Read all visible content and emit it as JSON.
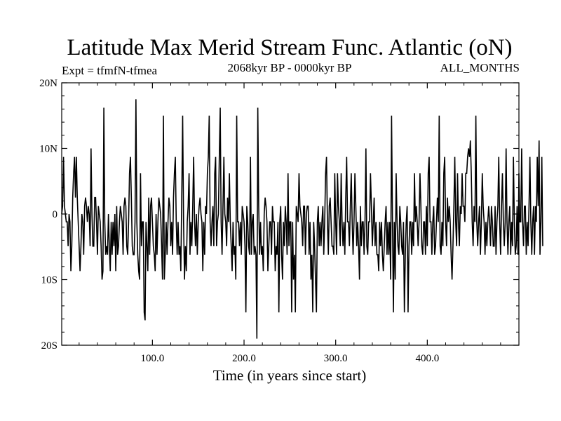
{
  "chart_data": {
    "type": "line",
    "title": "Latitude Max Merid Stream Func. Atlantic (oN)",
    "subtitle_left": "Expt = tfmfN-tfmea",
    "subtitle_center": "2068kyr BP - 0000kyr BP",
    "subtitle_right": "ALL_MONTHS",
    "xlabel": "Time (in years since start)",
    "ylabel": "",
    "xlim": [
      1,
      500
    ],
    "ylim": [
      -20,
      20
    ],
    "x_ticks": [
      100,
      200,
      300,
      400
    ],
    "x_tick_labels": [
      "100.0",
      "200.0",
      "300.0",
      "400.0"
    ],
    "y_ticks": [
      20,
      10,
      0,
      -10,
      -20
    ],
    "y_tick_labels": [
      "20N",
      "10N",
      "0",
      "10S",
      "20S"
    ],
    "grid": false,
    "series": [
      {
        "name": "Latitude Max Merid Stream Func.",
        "color": "#000000",
        "x_start": 1,
        "x_step": 1,
        "values": [
          0,
          1.2,
          8.7,
          1.2,
          0,
          -1.2,
          -1.2,
          -4.9,
          0,
          -1.2,
          -8.7,
          -4.9,
          2.5,
          6.2,
          8.7,
          2.5,
          8.7,
          2.5,
          -1.2,
          -4.9,
          -8.7,
          -4.9,
          0,
          -1.2,
          -6.2,
          1.2,
          2.5,
          1.2,
          -1.2,
          1.2,
          0,
          -4.9,
          10,
          0,
          -4.9,
          -4.9,
          2.5,
          2.5,
          -1.2,
          -6.2,
          1.2,
          0,
          -1.2,
          -4.9,
          -10,
          -8.7,
          16.2,
          -1.2,
          -6.2,
          -4.9,
          -6.2,
          0,
          -4.9,
          -8.7,
          -1.2,
          -6.2,
          -1.2,
          -4.9,
          0,
          -8.7,
          1.2,
          -6.2,
          -4.9,
          -1.2,
          1.2,
          0,
          -1.2,
          -6.2,
          1.2,
          2.5,
          1.2,
          -4.9,
          -6.2,
          -1.2,
          6.2,
          8.7,
          2.5,
          -4.9,
          -6.2,
          -6.2,
          -1.2,
          17.5,
          -1.2,
          -6.2,
          -8.7,
          -10,
          6.2,
          -4.9,
          -1.2,
          -1.2,
          -15,
          -16.2,
          -1.2,
          -4.9,
          -8.7,
          2.5,
          -6.2,
          1.2,
          2.5,
          -1.2,
          -4.9,
          -6.2,
          -8.7,
          0,
          -6.2,
          -1.2,
          2.5,
          1.2,
          0,
          -4.9,
          -10,
          15,
          -10,
          -6.2,
          -1.2,
          -6.2,
          -1.2,
          2.5,
          1.2,
          -4.9,
          -1.2,
          -6.2,
          2.5,
          6.2,
          8.7,
          -1.2,
          -6.2,
          -1.2,
          -6.2,
          -4.9,
          -8.7,
          2.5,
          15,
          -1.2,
          -10,
          -4.9,
          -8.7,
          -1.2,
          1.2,
          6.2,
          -6.2,
          -1.2,
          -4.9,
          1.2,
          8.7,
          -1.2,
          -4.9,
          0,
          -6.2,
          -1.2,
          1.2,
          2.5,
          0,
          -1.2,
          -8.7,
          -1.2,
          -6.2,
          1.2,
          0,
          6.2,
          8.7,
          15,
          -1.2,
          -4.9,
          -1.2,
          1.2,
          -4.9,
          6.2,
          8.7,
          -4.9,
          -1.2,
          0,
          8.7,
          16.2,
          -1.2,
          -6.2,
          1.2,
          8.7,
          0,
          -1.2,
          -4.9,
          2.5,
          -1.2,
          6.2,
          -1.2,
          -4.9,
          -8.7,
          -1.2,
          -6.2,
          -4.9,
          -10,
          15,
          -1.2,
          -1.2,
          -4.9,
          -1.2,
          -6.2,
          1.2,
          0,
          -1.2,
          -4.9,
          -15,
          1.2,
          -1.2,
          -4.9,
          -6.2,
          8.7,
          -6.2,
          -1.2,
          0,
          -6.2,
          -4.9,
          -6.2,
          -19,
          16.2,
          1.2,
          -6.2,
          -1.2,
          -6.2,
          -4.9,
          -8.7,
          0,
          2.5,
          1.2,
          -1.2,
          -8.7,
          -4.9,
          -1.2,
          -1.2,
          -6.2,
          1.2,
          -1.2,
          -1.2,
          -8.7,
          -4.9,
          -6.2,
          -1.2,
          -15,
          -1.2,
          1.2,
          -6.2,
          -10,
          -1.2,
          -4.9,
          1.2,
          -1.2,
          -6.2,
          6.2,
          -4.9,
          -1.2,
          -1.2,
          -15,
          -1.2,
          -10,
          -6.2,
          -15,
          1.2,
          0,
          -1.2,
          6.2,
          1.2,
          0,
          -1.2,
          -4.9,
          1.2,
          1.2,
          -6.2,
          0,
          1.2,
          1.2,
          -6.2,
          -1.2,
          -10,
          -6.2,
          -15,
          -1.2,
          -4.9,
          -10,
          -15,
          -1.2,
          1.2,
          -4.9,
          -1.2,
          -4.9,
          -1.2,
          1.2,
          -6.2,
          -1.2,
          6.2,
          8.7,
          -1.2,
          -6.2,
          1.2,
          2.5,
          -1.2,
          -4.9,
          -4.9,
          -6.2,
          6.2,
          -1.2,
          -6.2,
          6.2,
          1.2,
          -1.2,
          -4.9,
          6.2,
          -1.2,
          -4.9,
          -1.2,
          -6.2,
          2.5,
          8.7,
          -1.2,
          -1.2,
          -4.9,
          1.2,
          6.2,
          -1.2,
          -6.2,
          -1.2,
          6.2,
          1.2,
          -4.9,
          -1.2,
          -4.9,
          -10,
          1.2,
          -4.9,
          -1.2,
          -1.2,
          -6.2,
          -1.2,
          10,
          -4.9,
          -6.2,
          -1.2,
          -1.2,
          6.2,
          1.2,
          -4.9,
          -1.2,
          2.5,
          -4.9,
          -1.2,
          -6.2,
          -6.2,
          -8.7,
          -1.2,
          -4.9,
          -1.2,
          -6.2,
          -8.7,
          -4.9,
          -1.2,
          1.2,
          -6.2,
          -1.2,
          -6.2,
          -1.2,
          -10,
          15,
          -1.2,
          -15,
          -1.2,
          -10,
          6.2,
          -1.2,
          -4.9,
          -6.2,
          1.2,
          -1.2,
          -4.9,
          -6.2,
          -1.2,
          -15,
          -6.2,
          -1.2,
          1.2,
          -15,
          -4.9,
          -1.2,
          -1.2,
          -6.2,
          -1.2,
          -4.9,
          6.2,
          -1.2,
          1.2,
          -1.2,
          -4.9,
          -1.2,
          6.2,
          1.2,
          -4.9,
          -6.2,
          -1.2,
          -1.2,
          -6.2,
          1.2,
          -4.9,
          6.2,
          8.7,
          -1.2,
          -1.2,
          -6.2,
          -1.2,
          1.2,
          -6.2,
          -4.9,
          -1.2,
          2.5,
          -1.2,
          15,
          -4.9,
          -6.2,
          -1.2,
          -4.9,
          6.2,
          8.7,
          -1.2,
          -4.9,
          2.5,
          -1.2,
          1.2,
          -1.2,
          -6.2,
          -10,
          -4.9,
          1.2,
          8.7,
          -1.2,
          -4.9,
          6.2,
          -1.2,
          -4.9,
          1.2,
          0,
          6.2,
          1.2,
          1.2,
          -1.2,
          6.2,
          6.2,
          8.7,
          10,
          8.7,
          11.2,
          6.2,
          -1.2,
          -4.9,
          1.2,
          -1.2,
          15,
          -1.2,
          -4.9,
          -1.2,
          1.2,
          -6.2,
          -1.2,
          6.2,
          1.2,
          -1.2,
          -6.2,
          -1.2,
          -4.9,
          -1.2,
          1.2,
          -1.2,
          -4.9,
          1.2,
          -1.2,
          -4.9,
          -4.9,
          1.2,
          -6.2,
          -1.2,
          1.2,
          8.7,
          -1.2,
          -6.2,
          1.2,
          6.2,
          -1.2,
          -4.9,
          -1.2,
          10,
          -1.2,
          -6.2,
          -1.2,
          1.2,
          -6.2,
          -1.2,
          -4.9,
          8.7,
          -1.2,
          -6.2,
          -4.9,
          1.2,
          -6.2,
          6.2,
          -1.2,
          -1.2,
          10,
          -1.2,
          -4.9,
          1.2,
          1.2,
          -6.2,
          -1.2,
          -4.9,
          1.2,
          8.7,
          -1.2,
          -6.2,
          -1.2,
          1.2,
          -6.2,
          1.2,
          -1.2,
          8.7,
          1.2,
          11.2,
          -6.2,
          -1.2,
          8.7,
          -4.9
        ]
      }
    ]
  }
}
